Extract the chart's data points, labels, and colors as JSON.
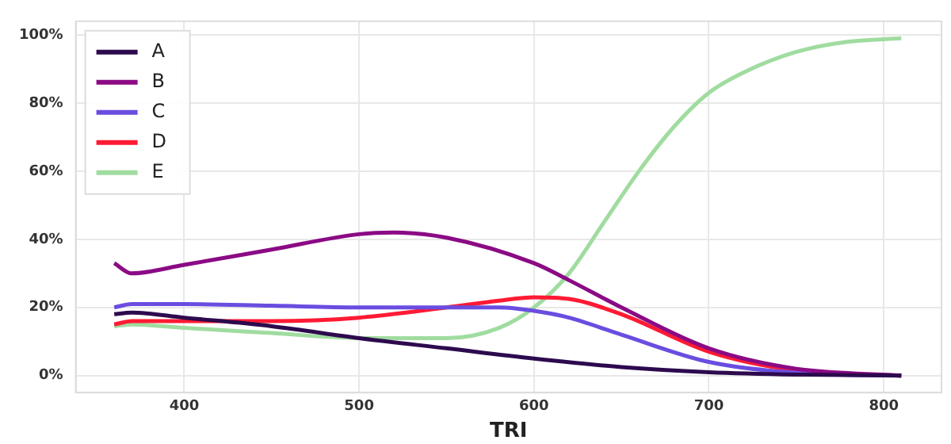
{
  "chart_data": {
    "type": "line",
    "xlabel": "TRI",
    "xlim": [
      338,
      833
    ],
    "ylim": [
      -5,
      104
    ],
    "xticks": [
      400,
      500,
      600,
      700,
      800
    ],
    "yticks": [
      {
        "value": 0,
        "label": "0%"
      },
      {
        "value": 20,
        "label": "20%"
      },
      {
        "value": 40,
        "label": "40%"
      },
      {
        "value": 60,
        "label": "60%"
      },
      {
        "value": 80,
        "label": "80%"
      },
      {
        "value": 100,
        "label": "100%"
      }
    ],
    "grid": true,
    "legend": "top left",
    "marker": "none",
    "line_style": "solid",
    "series": [
      {
        "name": "A",
        "color": "#2d0a4e",
        "x": [
          360,
          370,
          400,
          450,
          500,
          550,
          600,
          650,
          700,
          750,
          810
        ],
        "values": [
          18,
          18.5,
          17,
          14.5,
          11,
          8,
          5,
          2.5,
          1,
          0.3,
          0
        ]
      },
      {
        "name": "B",
        "color": "#8b0a85",
        "x": [
          360,
          370,
          400,
          450,
          500,
          520,
          550,
          600,
          620,
          650,
          700,
          750,
          810
        ],
        "values": [
          33,
          30,
          32.5,
          37,
          41.5,
          42,
          40.5,
          33,
          28,
          20,
          8,
          2,
          0
        ]
      },
      {
        "name": "C",
        "color": "#6a4de0",
        "x": [
          360,
          370,
          400,
          450,
          500,
          550,
          580,
          600,
          620,
          650,
          700,
          750,
          810
        ],
        "values": [
          20,
          21,
          21,
          20.5,
          20,
          20,
          20,
          19,
          17,
          12,
          4,
          0.8,
          0
        ]
      },
      {
        "name": "D",
        "color": "#ff1a33",
        "x": [
          360,
          370,
          400,
          450,
          500,
          550,
          580,
          600,
          620,
          650,
          700,
          750,
          810
        ],
        "values": [
          15,
          16,
          16,
          16,
          17,
          20,
          22,
          23,
          22.5,
          18,
          7,
          1.5,
          0
        ]
      },
      {
        "name": "E",
        "color": "#a0dca0",
        "x": [
          360,
          370,
          400,
          450,
          500,
          550,
          580,
          600,
          620,
          640,
          660,
          680,
          700,
          720,
          750,
          780,
          810
        ],
        "values": [
          14.5,
          15,
          14,
          12.5,
          11,
          11,
          14,
          20,
          30,
          45,
          60,
          73,
          83,
          89,
          95,
          98,
          99
        ]
      }
    ]
  }
}
